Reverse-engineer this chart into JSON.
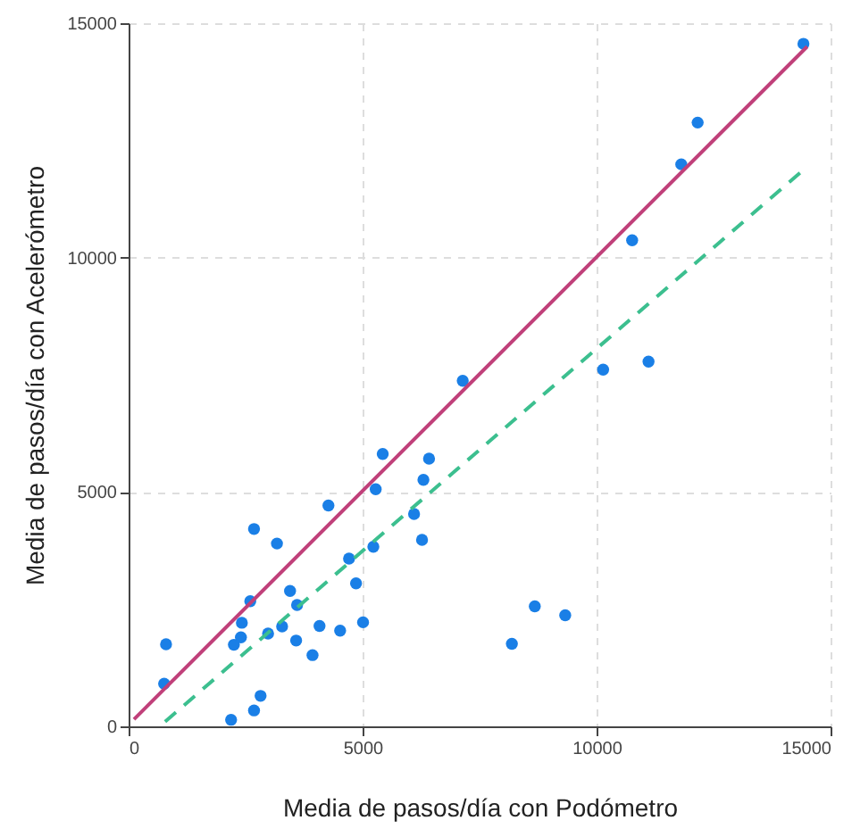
{
  "chart_data": {
    "type": "scatter",
    "xlabel": "Media de pasos/día con Podómetro",
    "ylabel": "Media de pasos/día con Acelerómetro",
    "xlim": [
      0,
      15000
    ],
    "ylim": [
      0,
      15000
    ],
    "xticks": [
      0,
      5000,
      10000,
      15000
    ],
    "yticks": [
      0,
      5000,
      10000,
      15000
    ],
    "grid": true,
    "series": [
      {
        "color": "#1a7fe6",
        "marker": "circle",
        "x": [
          800,
          760,
          2190,
          2680,
          2820,
          2250,
          2400,
          2420,
          2600,
          2680,
          3170,
          2980,
          3280,
          3450,
          3600,
          3580,
          3930,
          4080,
          4270,
          4520,
          4710,
          4860,
          5010,
          5230,
          5280,
          5430,
          6100,
          6270,
          6300,
          6420,
          7140,
          10140,
          11110,
          10760,
          11810,
          12160,
          14420,
          8190,
          8680,
          9330
        ],
        "values": [
          1750,
          910,
          140,
          340,
          650,
          1740,
          1900,
          2210,
          2670,
          4210,
          3900,
          1980,
          2130,
          2890,
          2590,
          1830,
          1520,
          2140,
          4710,
          2040,
          3580,
          3050,
          2220,
          3830,
          5060,
          5810,
          4530,
          3980,
          5260,
          5710,
          7370,
          7610,
          7780,
          10370,
          11990,
          12880,
          14560,
          1760,
          2560,
          2370
        ]
      },
      {
        "type": "line",
        "color": "#c0407a",
        "line_style": "solid",
        "marker": "none",
        "x": [
          115,
          14500
        ],
        "values": [
          150,
          14500
        ]
      },
      {
        "type": "line",
        "color": "#3cbf8f",
        "line_style": "dashed",
        "marker": "none",
        "x": [
          780,
          14430
        ],
        "values": [
          100,
          11880
        ]
      }
    ]
  }
}
